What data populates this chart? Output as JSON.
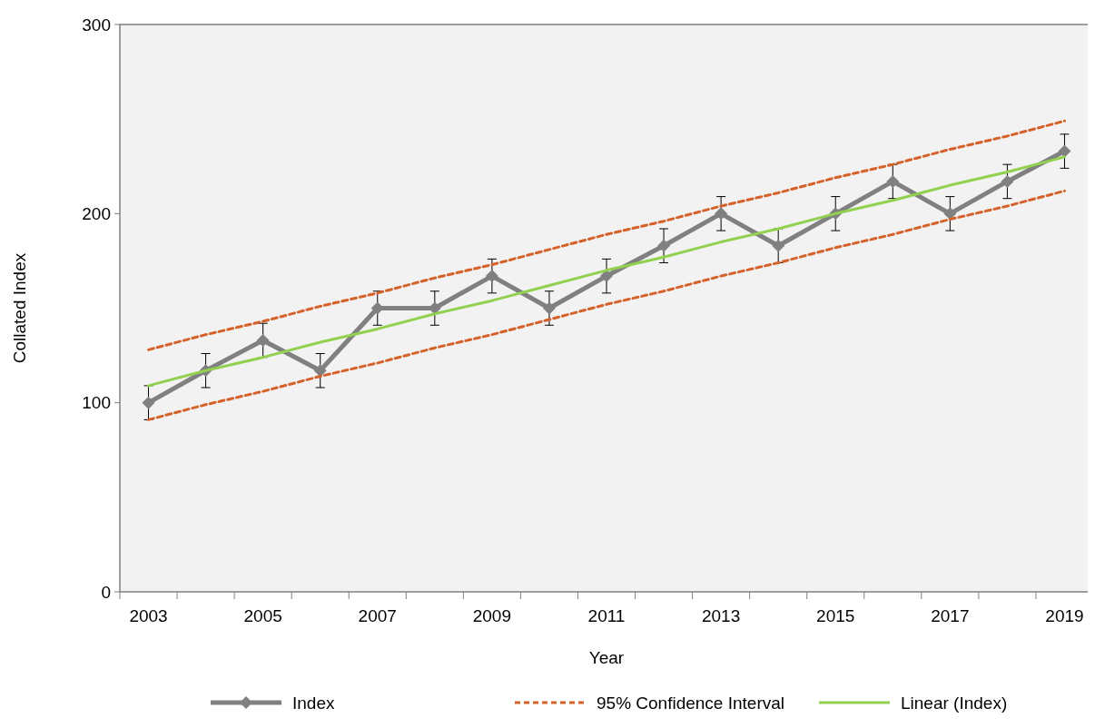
{
  "chart_data": {
    "type": "line",
    "xlabel": "Year",
    "ylabel": "Collated Index",
    "categories": [
      "2003",
      null,
      "2005",
      null,
      "2007",
      null,
      "2009",
      null,
      "2011",
      null,
      "2013",
      null,
      "2015",
      null,
      "2017",
      null,
      "2019"
    ],
    "series": [
      {
        "name": "Index",
        "color": "#808080",
        "marker": "diamond",
        "line_style": "solid",
        "values": [
          100,
          117,
          133,
          117,
          150,
          150,
          167,
          150,
          167,
          183,
          200,
          183,
          200,
          217,
          200,
          217,
          233
        ],
        "errors": [
          9,
          9,
          9,
          9,
          9,
          9,
          9,
          9,
          9,
          9,
          9,
          9,
          9,
          9,
          9,
          9,
          9
        ]
      },
      {
        "name": "95% Confidence Interval",
        "color": "#d4622a",
        "marker": "none",
        "line_style": "dashed",
        "values": [
          128,
          136,
          143,
          151,
          158,
          166,
          173,
          181,
          189,
          196,
          204,
          211,
          219,
          226,
          234,
          241,
          249
        ]
      },
      {
        "color": "#d4622a",
        "marker": "none",
        "line_style": "dashed",
        "values": [
          91,
          99,
          106,
          114,
          121,
          129,
          136,
          144,
          152,
          159,
          167,
          174,
          182,
          189,
          197,
          204,
          212
        ]
      },
      {
        "name": "Linear (Index)",
        "color": "#92d050",
        "marker": "none",
        "line_style": "solid",
        "values": [
          109,
          117,
          124,
          132,
          139,
          147,
          154,
          162,
          170,
          177,
          185,
          192,
          200,
          207,
          215,
          222,
          230
        ]
      }
    ],
    "ylim": [
      0,
      300
    ],
    "yticks": [
      0,
      100,
      200,
      300
    ],
    "grid": false,
    "legend": "bottom"
  }
}
